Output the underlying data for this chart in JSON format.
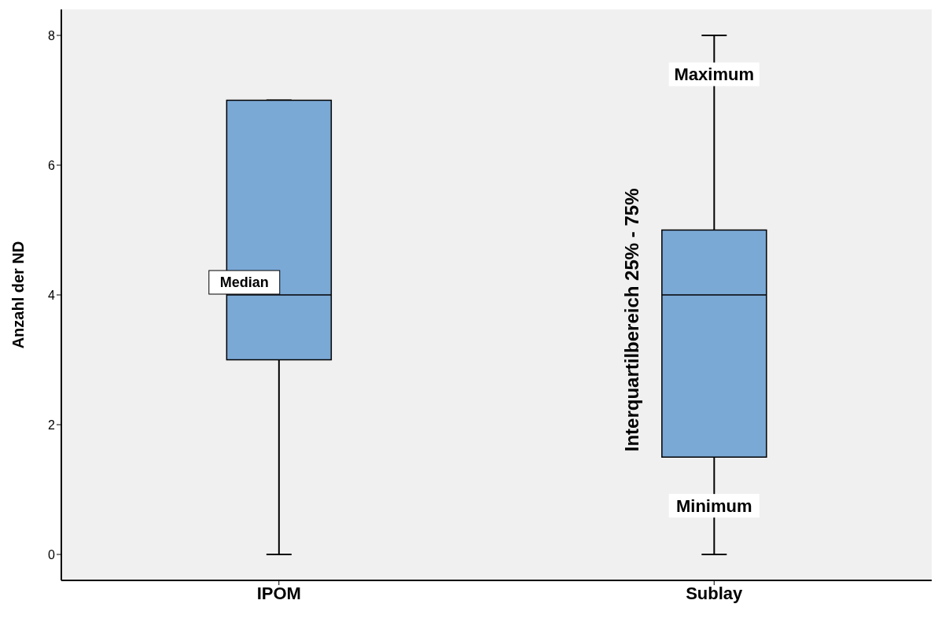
{
  "chart_data": {
    "type": "box",
    "ylabel": "Anzahl der ND",
    "categories": [
      "IPOM",
      "Sublay"
    ],
    "color": "#7ba9d6",
    "boxes": [
      {
        "low": 0,
        "q1": 3,
        "median": 4,
        "q3": 7,
        "high": 7
      },
      {
        "low": 0,
        "q1": 1.5,
        "median": 4,
        "q3": 5,
        "high": 8
      }
    ],
    "ylim": [
      -0.4,
      8.4
    ],
    "yticks": [
      0,
      2,
      4,
      6,
      8
    ],
    "grid": false,
    "annotations": [
      {
        "text": "Median",
        "x": "IPOM",
        "y": 4
      },
      {
        "text": "Maximum",
        "x": "Sublay",
        "y": 7.4
      },
      {
        "text": "Minimum",
        "x": "Sublay",
        "y": 0.75
      },
      "Interquartilbereich 25% - 75%"
    ]
  }
}
